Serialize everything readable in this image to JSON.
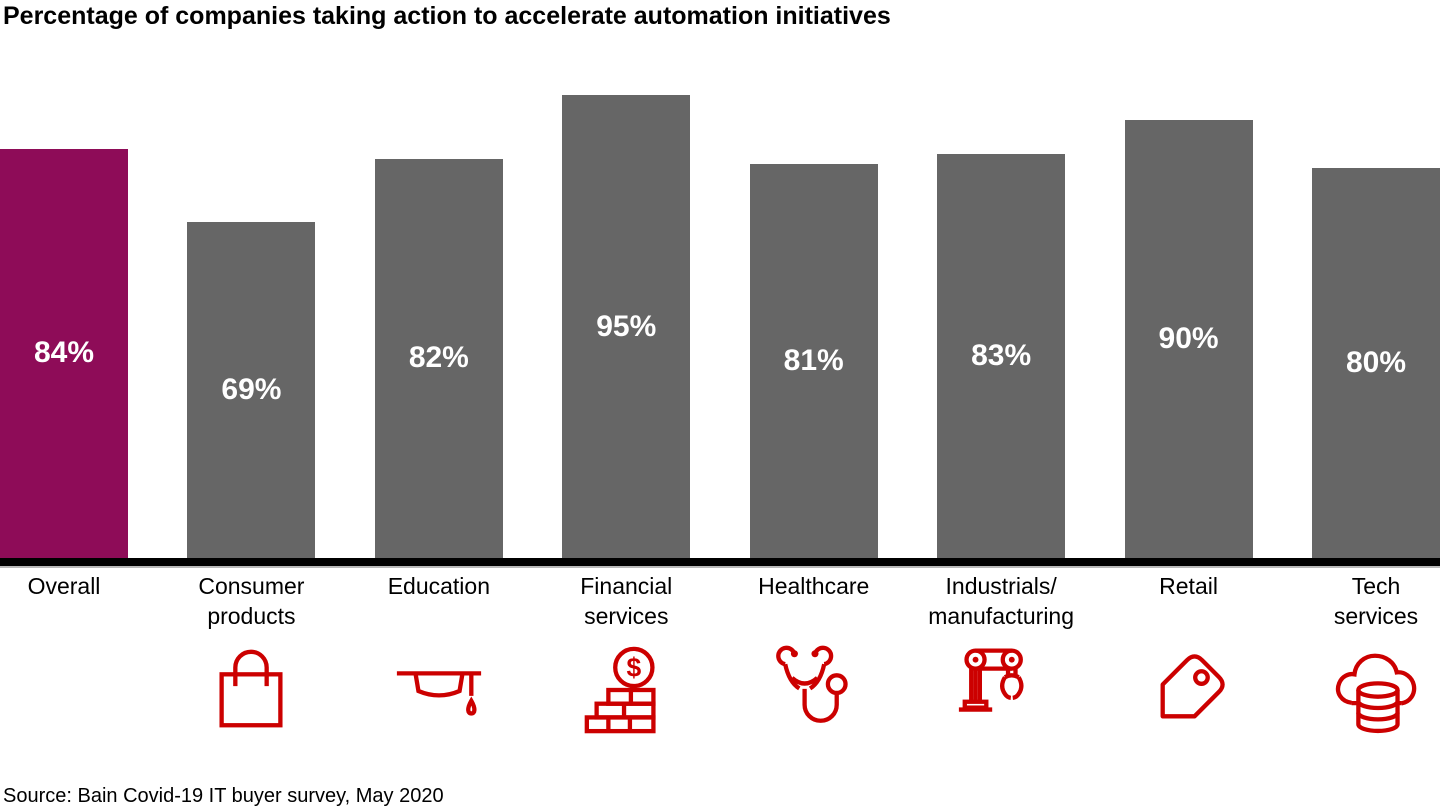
{
  "title": "Percentage of companies taking action to accelerate automation initiatives",
  "source": "Source: Bain Covid-19 IT buyer survey, May 2020",
  "colors": {
    "highlight": "#8E0C58",
    "bar": "#666666",
    "icon": "#CC0000",
    "axis": "#000000",
    "value_label": "#FFFFFF"
  },
  "chart_data": {
    "type": "bar",
    "title": "Percentage of companies taking action to accelerate automation initiatives",
    "categories": [
      "Overall",
      "Consumer products",
      "Education",
      "Financial services",
      "Healthcare",
      "Industrials/manufacturing",
      "Retail",
      "Tech services"
    ],
    "values": [
      84,
      69,
      82,
      95,
      81,
      83,
      90,
      80
    ],
    "value_labels": [
      "84%",
      "69%",
      "82%",
      "95%",
      "81%",
      "83%",
      "90%",
      "80%"
    ],
    "xlabel": "",
    "ylabel": "",
    "ylim": [
      0,
      100
    ],
    "grid": false,
    "legend": null,
    "highlight_index": 0,
    "value_label_position": "inside-center",
    "category_icons": [
      null,
      "shopping-bag",
      "graduation-cap",
      "dollar-coins",
      "stethoscope",
      "robot-arm",
      "price-tag",
      "cloud-database"
    ]
  },
  "bars": [
    {
      "label_lines": [
        "Overall"
      ],
      "value": 84,
      "value_label": "84%",
      "highlight": true,
      "icon": null
    },
    {
      "label_lines": [
        "Consumer",
        "products"
      ],
      "value": 69,
      "value_label": "69%",
      "highlight": false,
      "icon": "shopping-bag"
    },
    {
      "label_lines": [
        "Education"
      ],
      "value": 82,
      "value_label": "82%",
      "highlight": false,
      "icon": "graduation-cap"
    },
    {
      "label_lines": [
        "Financial",
        "services"
      ],
      "value": 95,
      "value_label": "95%",
      "highlight": false,
      "icon": "dollar-coins"
    },
    {
      "label_lines": [
        "Healthcare"
      ],
      "value": 81,
      "value_label": "81%",
      "highlight": false,
      "icon": "stethoscope"
    },
    {
      "label_lines": [
        "Industrials/",
        "manufacturing"
      ],
      "value": 83,
      "value_label": "83%",
      "highlight": false,
      "icon": "robot-arm"
    },
    {
      "label_lines": [
        "Retail"
      ],
      "value": 90,
      "value_label": "90%",
      "highlight": false,
      "icon": "price-tag"
    },
    {
      "label_lines": [
        "Tech",
        "services"
      ],
      "value": 80,
      "value_label": "80%",
      "highlight": false,
      "icon": "cloud-database"
    }
  ]
}
